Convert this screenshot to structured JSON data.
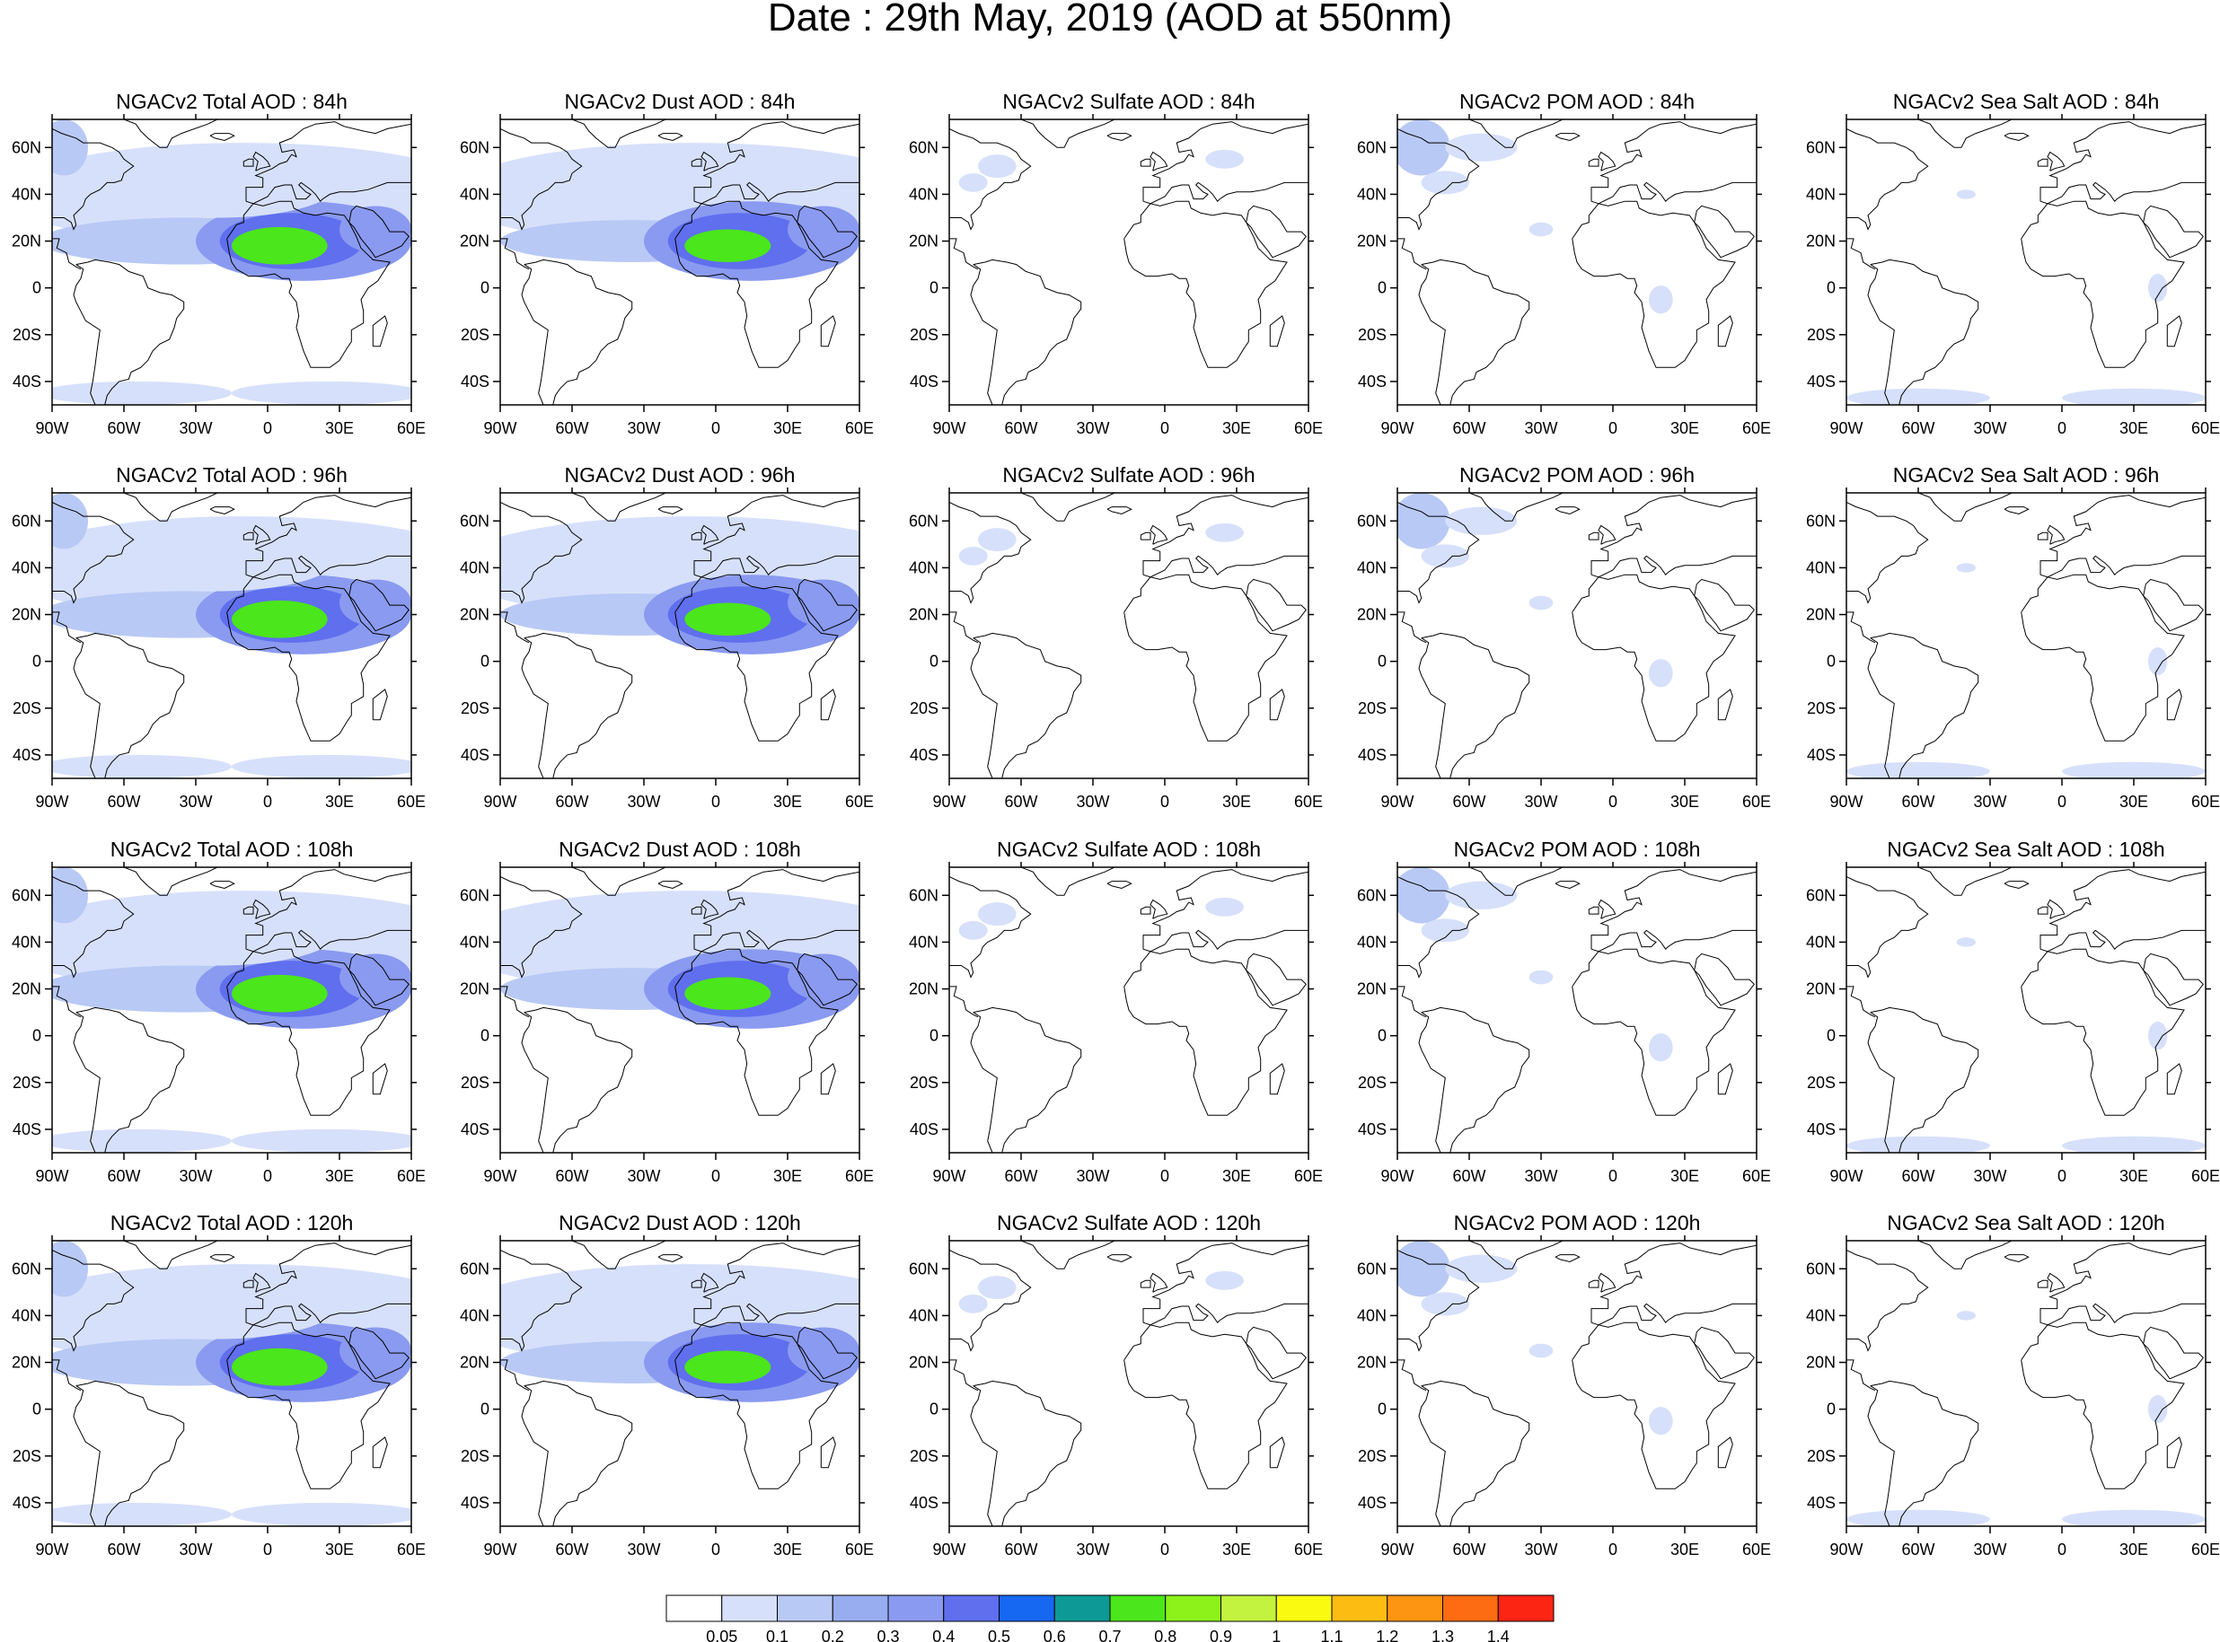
{
  "title": "Date : 29th May, 2019 (AOD at 550nm)",
  "panels": [
    [
      "NGACv2 Total AOD : 84h",
      "NGACv2 Dust AOD : 84h",
      "NGACv2 Sulfate AOD : 84h",
      "NGACv2 POM AOD : 84h",
      "NGACv2 Sea Salt AOD : 84h"
    ],
    [
      "NGACv2 Total AOD : 96h",
      "NGACv2 Dust AOD : 96h",
      "NGACv2 Sulfate AOD : 96h",
      "NGACv2 POM AOD : 96h",
      "NGACv2 Sea Salt AOD : 96h"
    ],
    [
      "NGACv2 Total AOD : 108h",
      "NGACv2 Dust AOD : 108h",
      "NGACv2 Sulfate AOD : 108h",
      "NGACv2 POM AOD : 108h",
      "NGACv2 Sea Salt AOD : 108h"
    ],
    [
      "NGACv2 Total AOD : 120h",
      "NGACv2 Dust AOD : 120h",
      "NGACv2 Sulfate AOD : 120h",
      "NGACv2 POM AOD : 120h",
      "NGACv2 Sea Salt  AOD : 120h"
    ]
  ],
  "lon_ticks": [
    "90W",
    "60W",
    "30W",
    "0",
    "30E",
    "60E"
  ],
  "lat_ticks": [
    "60N",
    "40N",
    "20N",
    "0",
    "20S",
    "40S"
  ],
  "colorbar": {
    "labels": [
      "0.05",
      "0.1",
      "0.2",
      "0.3",
      "0.4",
      "0.5",
      "0.6",
      "0.7",
      "0.8",
      "0.9",
      "1",
      "1.1",
      "1.2",
      "1.3",
      "1.4"
    ],
    "colors": [
      "#ffffff",
      "#d6e0fa",
      "#b9c9f5",
      "#98adf0",
      "#8a9af0",
      "#5f6fee",
      "#1667f2",
      "#0d9a96",
      "#4be61b",
      "#8cf21a",
      "#c3f33e",
      "#fafa11",
      "#fdbc12",
      "#fd9412",
      "#fd6b12",
      "#fc2412"
    ]
  },
  "field_colors": {
    "low": "#d6e0fa",
    "mid": "#b9c9f5",
    "high": "#98adf0",
    "higher": "#8a9af0",
    "peak": "#5f6fee",
    "extreme": "#4be61b"
  }
}
